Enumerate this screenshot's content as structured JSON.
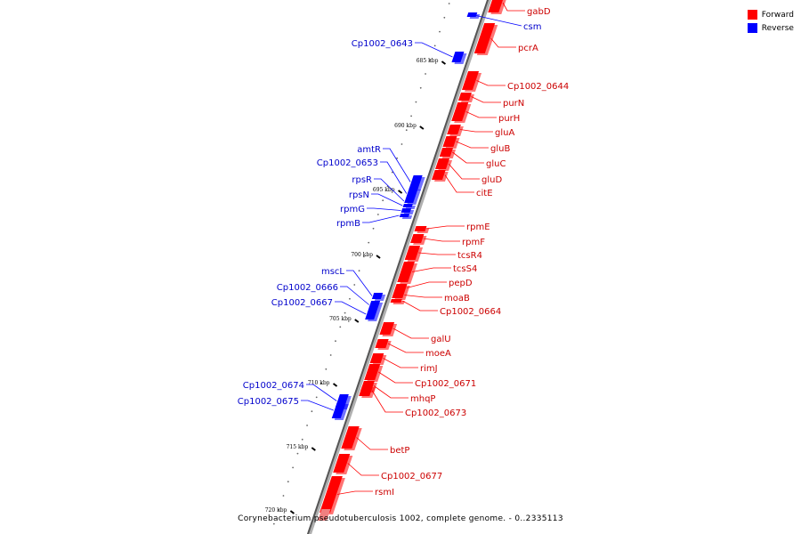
{
  "caption": "Corynebacterium pseudotuberculosis 1002, complete genome. - 0..2335113",
  "legend": [
    {
      "label": "Forward",
      "color": "#ff0000"
    },
    {
      "label": "Reverse",
      "color": "#0000ff"
    }
  ],
  "ticks": [
    {
      "label": "685 kbp",
      "kbp": 685
    },
    {
      "label": "690 kbp",
      "kbp": 690
    },
    {
      "label": "695 kbp",
      "kbp": 695
    },
    {
      "label": "700 kbp",
      "kbp": 700
    },
    {
      "label": "705 kbp",
      "kbp": 705
    },
    {
      "label": "710 kbp",
      "kbp": 710
    },
    {
      "label": "715 kbp",
      "kbp": 715
    },
    {
      "label": "720 kbp",
      "kbp": 720
    }
  ],
  "forward_genes": [
    {
      "name": "gabD"
    },
    {
      "name": "pcrA"
    },
    {
      "name": "Cp1002_0644"
    },
    {
      "name": "purN"
    },
    {
      "name": "purH"
    },
    {
      "name": "gluA"
    },
    {
      "name": "gluB"
    },
    {
      "name": "gluC"
    },
    {
      "name": "gluD"
    },
    {
      "name": "citE"
    },
    {
      "name": "rpmE"
    },
    {
      "name": "rpmF"
    },
    {
      "name": "tcsR4"
    },
    {
      "name": "tcsS4"
    },
    {
      "name": "pepD"
    },
    {
      "name": "moaB"
    },
    {
      "name": "Cp1002_0664"
    },
    {
      "name": "galU"
    },
    {
      "name": "moeA"
    },
    {
      "name": "rimJ"
    },
    {
      "name": "Cp1002_0671"
    },
    {
      "name": "mhqP"
    },
    {
      "name": "Cp1002_0673"
    },
    {
      "name": "betP"
    },
    {
      "name": "Cp1002_0677"
    },
    {
      "name": "rsmI"
    }
  ],
  "reverse_genes": [
    {
      "name": "csm"
    },
    {
      "name": "Cp1002_0643"
    },
    {
      "name": "amtR"
    },
    {
      "name": "Cp1002_0653"
    },
    {
      "name": "rpsR"
    },
    {
      "name": "rpsN"
    },
    {
      "name": "rpmG"
    },
    {
      "name": "rpmB"
    },
    {
      "name": "mscL"
    },
    {
      "name": "Cp1002_0666"
    },
    {
      "name": "Cp1002_0667"
    },
    {
      "name": "Cp1002_0674"
    },
    {
      "name": "Cp1002_0675"
    }
  ]
}
